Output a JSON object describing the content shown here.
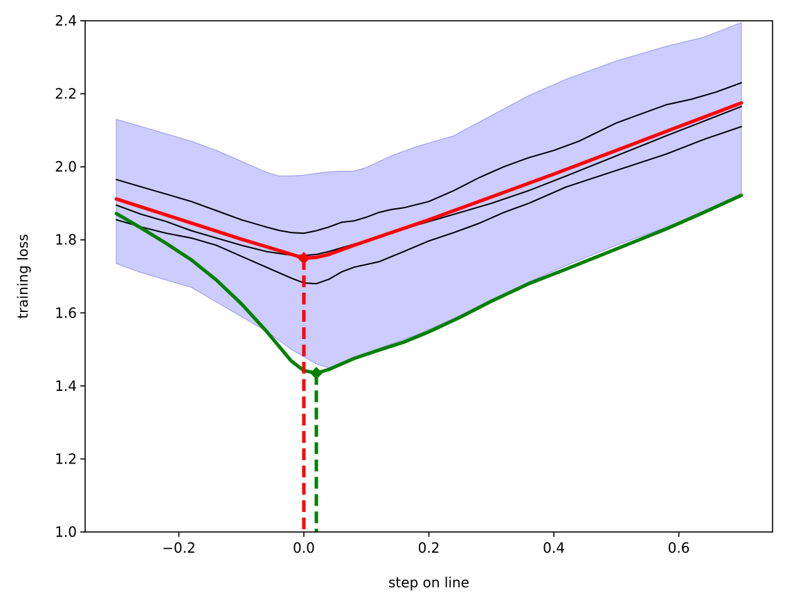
{
  "chart_data": {
    "type": "line",
    "title": "",
    "xlabel": "step on line",
    "ylabel": "training loss",
    "xlim": [
      -0.35,
      0.75
    ],
    "ylim": [
      1.0,
      2.4
    ],
    "xticks": [
      -0.2,
      0.0,
      0.2,
      0.4,
      0.6
    ],
    "xtick_labels": [
      "−0.2",
      "0.0",
      "0.2",
      "0.4",
      "0.6"
    ],
    "yticks": [
      1.0,
      1.2,
      1.4,
      1.6,
      1.8,
      2.0,
      2.2,
      2.4
    ],
    "ytick_labels": [
      "1.0",
      "1.2",
      "1.4",
      "1.6",
      "1.8",
      "2.0",
      "2.2",
      "2.4"
    ],
    "grid": false,
    "band": {
      "name": "spread",
      "color": "#ccccff",
      "edge_color": "#a0a0f0",
      "x": [
        -0.3,
        -0.26,
        -0.22,
        -0.18,
        -0.14,
        -0.1,
        -0.06,
        -0.04,
        -0.02,
        0.0,
        0.02,
        0.04,
        0.06,
        0.08,
        0.1,
        0.14,
        0.18,
        0.24,
        0.3,
        0.36,
        0.42,
        0.5,
        0.58,
        0.64,
        0.7
      ],
      "upper": [
        2.13,
        2.11,
        2.09,
        2.07,
        2.045,
        2.015,
        1.985,
        1.975,
        1.975,
        1.977,
        1.982,
        1.986,
        1.988,
        1.988,
        1.998,
        2.03,
        2.055,
        2.085,
        2.14,
        2.195,
        2.24,
        2.29,
        2.33,
        2.355,
        2.395
      ],
      "lower": [
        1.735,
        1.71,
        1.69,
        1.67,
        1.63,
        1.59,
        1.55,
        1.525,
        1.5,
        1.48,
        1.46,
        1.45,
        1.46,
        1.475,
        1.49,
        1.515,
        1.54,
        1.585,
        1.635,
        1.685,
        1.73,
        1.785,
        1.835,
        1.875,
        1.92
      ]
    },
    "series": [
      {
        "name": "black upper",
        "color": "#000000",
        "width": 2,
        "x": [
          -0.3,
          -0.26,
          -0.22,
          -0.18,
          -0.14,
          -0.1,
          -0.06,
          -0.04,
          -0.02,
          0.0,
          0.02,
          0.04,
          0.06,
          0.08,
          0.1,
          0.12,
          0.14,
          0.16,
          0.2,
          0.24,
          0.28,
          0.32,
          0.36,
          0.4,
          0.44,
          0.5,
          0.54,
          0.58,
          0.62,
          0.66,
          0.7
        ],
        "values": [
          1.965,
          1.945,
          1.925,
          1.905,
          1.88,
          1.855,
          1.835,
          1.826,
          1.82,
          1.818,
          1.825,
          1.835,
          1.848,
          1.852,
          1.862,
          1.875,
          1.883,
          1.888,
          1.905,
          1.935,
          1.97,
          2.0,
          2.025,
          2.045,
          2.07,
          2.12,
          2.145,
          2.17,
          2.185,
          2.205,
          2.23
        ]
      },
      {
        "name": "black middle",
        "color": "#000000",
        "width": 2,
        "x": [
          -0.3,
          -0.26,
          -0.22,
          -0.18,
          -0.14,
          -0.1,
          -0.06,
          -0.02,
          0.0,
          0.02,
          0.04,
          0.06,
          0.08,
          0.1,
          0.14,
          0.18,
          0.24,
          0.3,
          0.36,
          0.42,
          0.5,
          0.58,
          0.64,
          0.7
        ],
        "values": [
          1.895,
          1.87,
          1.85,
          1.825,
          1.805,
          1.785,
          1.768,
          1.758,
          1.757,
          1.76,
          1.768,
          1.778,
          1.788,
          1.797,
          1.818,
          1.84,
          1.87,
          1.9,
          1.935,
          1.975,
          2.03,
          2.085,
          2.125,
          2.165
        ]
      },
      {
        "name": "black lower",
        "color": "#000000",
        "width": 2,
        "x": [
          -0.3,
          -0.26,
          -0.22,
          -0.18,
          -0.14,
          -0.1,
          -0.06,
          -0.02,
          0.0,
          0.02,
          0.04,
          0.06,
          0.08,
          0.12,
          0.16,
          0.2,
          0.24,
          0.28,
          0.32,
          0.36,
          0.42,
          0.5,
          0.58,
          0.64,
          0.7
        ],
        "values": [
          1.855,
          1.835,
          1.818,
          1.805,
          1.785,
          1.755,
          1.725,
          1.695,
          1.682,
          1.68,
          1.692,
          1.712,
          1.725,
          1.74,
          1.768,
          1.797,
          1.82,
          1.845,
          1.875,
          1.9,
          1.945,
          1.99,
          2.035,
          2.075,
          2.11
        ]
      },
      {
        "name": "red mean",
        "color": "#ff0000",
        "width": 5,
        "x": [
          -0.3,
          -0.2,
          -0.1,
          0.0,
          0.02,
          0.04,
          0.08,
          0.2,
          0.4,
          0.6,
          0.7
        ],
        "values": [
          1.912,
          1.857,
          1.802,
          1.75,
          1.752,
          1.76,
          1.785,
          1.855,
          1.98,
          2.11,
          2.175
        ]
      },
      {
        "name": "green",
        "color": "#008000",
        "width": 5,
        "x": [
          -0.3,
          -0.26,
          -0.22,
          -0.18,
          -0.14,
          -0.1,
          -0.06,
          -0.02,
          0.0,
          0.02,
          0.04,
          0.08,
          0.12,
          0.16,
          0.2,
          0.25,
          0.3,
          0.36,
          0.42,
          0.5,
          0.58,
          0.64,
          0.7
        ],
        "values": [
          1.872,
          1.832,
          1.79,
          1.745,
          1.69,
          1.625,
          1.55,
          1.468,
          1.442,
          1.435,
          1.445,
          1.475,
          1.498,
          1.52,
          1.548,
          1.588,
          1.632,
          1.68,
          1.72,
          1.775,
          1.83,
          1.875,
          1.922
        ]
      }
    ],
    "markers": [
      {
        "name": "red minimum",
        "color": "#ff0000",
        "x": 0.0,
        "y": 1.75,
        "shape": "diamond",
        "dropline_to": 1.0
      },
      {
        "name": "green minimum",
        "color": "#008000",
        "x": 0.02,
        "y": 1.435,
        "shape": "diamond",
        "dropline_to": 1.0
      }
    ]
  }
}
